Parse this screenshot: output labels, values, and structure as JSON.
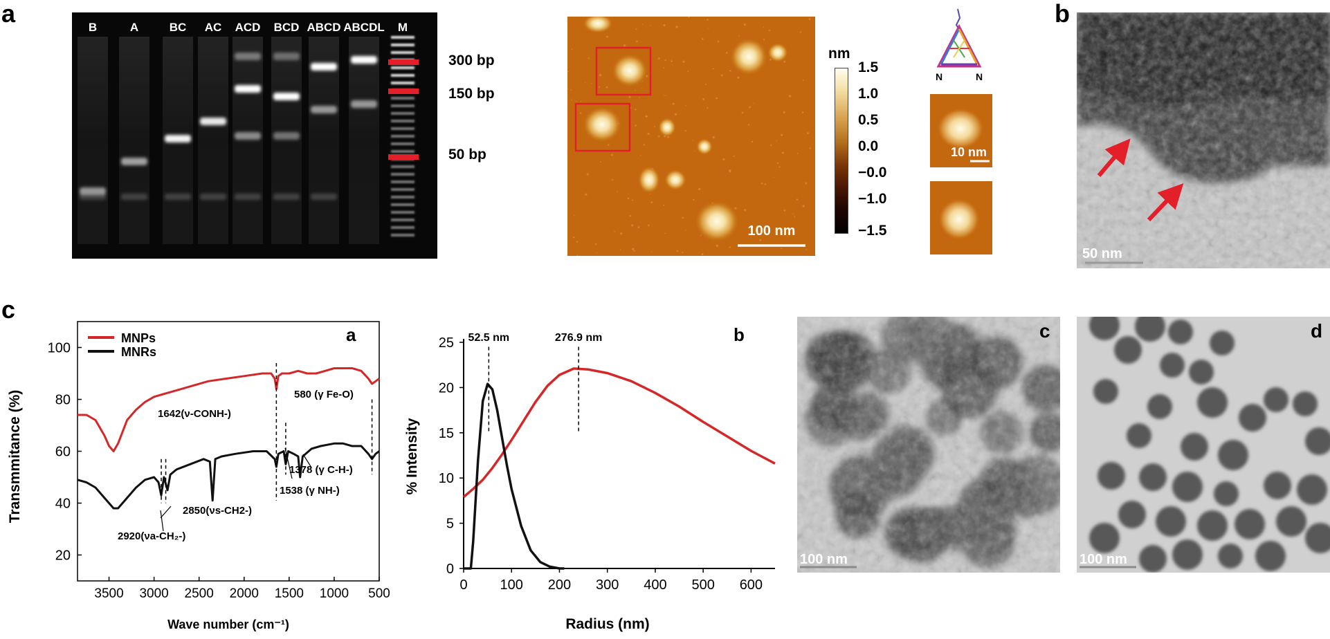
{
  "panel_labels": {
    "a": "a",
    "b": "b",
    "c": "c"
  },
  "gel": {
    "lanes": [
      "B",
      "A",
      "BC",
      "AC",
      "ACD",
      "BCD",
      "ABCD",
      "ABCDL",
      "M"
    ],
    "markers": [
      "300 bp",
      "150 bp",
      "50 bp"
    ]
  },
  "afm": {
    "scale_bar": "100 nm",
    "colorbar_unit": "nm",
    "colorbar_ticks": [
      "1.5",
      "1.0",
      "0.5",
      "0.0",
      "−0.0",
      "−1.0",
      "−1.5"
    ],
    "inset_scale": "10 nm",
    "triangle_labels": [
      "N",
      "N"
    ]
  },
  "tem_b": {
    "scale_bar": "50 nm"
  },
  "ftir": {
    "sublabel": "a",
    "legend": [
      "MNPs",
      "MNRs"
    ],
    "colors": [
      "#d62728",
      "#111111"
    ],
    "ylabel": "Transmmitance (%)",
    "xlabel": "Wave number (cm⁻¹)",
    "xticks": [
      "3500",
      "3000",
      "2500",
      "2000",
      "1500",
      "1000",
      "500"
    ],
    "yticks": [
      "100",
      "80",
      "60",
      "40",
      "20"
    ],
    "annotations": [
      "1642(ν-CONH-)",
      "580 (γ Fe-O)",
      "2850(νs-CH2-)",
      "2920(νa-CH₂-)",
      "1378 (γ C-H-)",
      "1538 (γ NH-)"
    ]
  },
  "dls": {
    "sublabel": "b",
    "ylabel": "% Intensity",
    "xlabel": "Radius (nm)",
    "xticks": [
      "0",
      "100",
      "200",
      "300",
      "400",
      "500",
      "600"
    ],
    "yticks": [
      "0",
      "5",
      "10",
      "15",
      "20",
      "25"
    ],
    "peak_labels": [
      "52.5 nm",
      "276.9 nm"
    ]
  },
  "tem_c": {
    "sublabel": "c",
    "scale_bar": "100 nm"
  },
  "tem_d": {
    "sublabel": "d",
    "scale_bar": "100 nm"
  },
  "chart_data": [
    {
      "type": "line",
      "title": "",
      "xlabel": "Wave number (cm⁻¹)",
      "ylabel": "Transmmitance (%)",
      "xlim": [
        3850,
        500
      ],
      "ylim": [
        10,
        110
      ],
      "series": [
        {
          "name": "MNPs",
          "x": [
            3850,
            3750,
            3650,
            3550,
            3500,
            3450,
            3400,
            3300,
            3200,
            3100,
            3000,
            2900,
            2800,
            2600,
            2400,
            2200,
            2000,
            1800,
            1700,
            1660,
            1642,
            1620,
            1580,
            1500,
            1400,
            1300,
            1200,
            1100,
            1000,
            900,
            800,
            700,
            620,
            580,
            540,
            500
          ],
          "y": [
            74,
            74,
            72,
            66,
            62,
            60,
            63,
            72,
            76,
            79,
            81,
            82,
            83,
            85,
            87,
            88,
            89,
            90,
            90,
            88,
            84,
            89,
            90,
            90,
            91,
            90,
            90,
            91,
            92,
            92,
            92,
            91,
            88,
            86,
            87,
            88
          ]
        },
        {
          "name": "MNRs",
          "x": [
            3850,
            3750,
            3650,
            3550,
            3450,
            3400,
            3300,
            3200,
            3100,
            3000,
            2950,
            2920,
            2890,
            2850,
            2820,
            2750,
            2600,
            2450,
            2380,
            2350,
            2320,
            2250,
            2100,
            1900,
            1750,
            1660,
            1642,
            1620,
            1560,
            1538,
            1510,
            1450,
            1400,
            1378,
            1350,
            1250,
            1150,
            1000,
            900,
            800,
            700,
            620,
            580,
            540,
            500
          ],
          "y": [
            49,
            48,
            46,
            42,
            38,
            38,
            42,
            46,
            49,
            50,
            48,
            43,
            50,
            45,
            51,
            53,
            55,
            57,
            56,
            41,
            57,
            58,
            59,
            60,
            60,
            57,
            54,
            59,
            60,
            55,
            60,
            59,
            58,
            50,
            58,
            61,
            62,
            63,
            63,
            62,
            62,
            59,
            57,
            59,
            60
          ]
        }
      ]
    },
    {
      "type": "line",
      "title": "",
      "xlabel": "Radius (nm)",
      "ylabel": "% Intensity",
      "xlim": [
        0,
        650
      ],
      "ylim": [
        0,
        25
      ],
      "series": [
        {
          "name": "",
          "x": [
            0,
            20,
            40,
            60,
            80,
            100,
            125,
            150,
            175,
            200,
            230,
            260,
            300,
            350,
            400,
            450,
            500,
            550,
            600,
            650
          ],
          "y": [
            7.9,
            8.8,
            9.8,
            11.1,
            12.6,
            14.2,
            16.3,
            18.4,
            20.2,
            21.4,
            22.1,
            22.0,
            21.6,
            20.7,
            19.4,
            17.9,
            16.2,
            14.6,
            13.0,
            11.6
          ]
        },
        {
          "name": "",
          "x": [
            0,
            15,
            20,
            30,
            40,
            50,
            60,
            70,
            80,
            90,
            100,
            120,
            140,
            160,
            180,
            200,
            210
          ],
          "y": [
            0,
            0,
            3,
            12,
            18.5,
            20.4,
            19.8,
            17.5,
            14.5,
            11.5,
            8.8,
            4.7,
            2.0,
            0.7,
            0.2,
            0,
            0
          ]
        }
      ],
      "annotations": [
        {
          "x": 52.5,
          "label": "52.5 nm"
        },
        {
          "x": 276.9,
          "label": "276.9 nm"
        }
      ]
    }
  ]
}
